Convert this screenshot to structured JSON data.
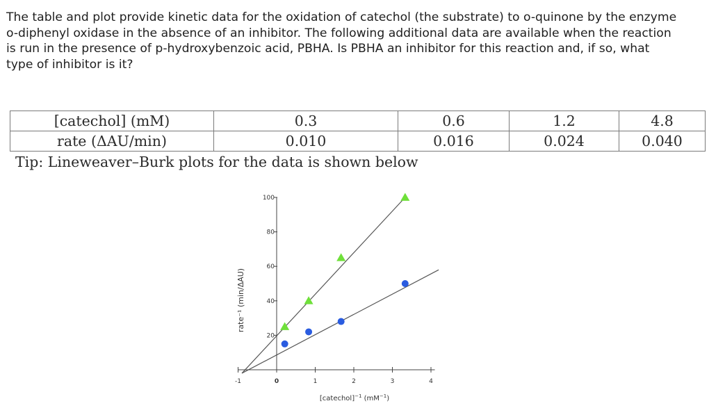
{
  "question": {
    "lines": [
      "The table and plot provide kinetic data for the oxidation of catechol (the substrate) to o-quinone by the enzyme",
      "o-diphenyl oxidase in the absence of an inhibitor. The following additional data are available when the reaction",
      "is run in the presence of p-hydroxybenzoic acid, PBHA. Is PBHA an inhibitor for this reaction and, if so, what",
      "type of inhibitor is it?"
    ]
  },
  "table": {
    "row1_label": "[catechol] (mM)",
    "row2_label": "rate (ΔAU/min)",
    "concentrations": [
      "0.3",
      "0.6",
      "1.2",
      "4.8"
    ],
    "rates": [
      "0.010",
      "0.016",
      "0.024",
      "0.040"
    ]
  },
  "tip": "Tip:  Lineweaver–Burk plots for the data is shown below",
  "chart_data": {
    "type": "scatter",
    "xlabel_main": "[catechol]",
    "xlabel_exp": "−1",
    "xlabel_unit": " (mM",
    "xlabel_unit_exp": "−1",
    "xlabel_close": ")",
    "ylabel": "rate⁻¹ (min/ΔAU)",
    "x_ticks": [
      "-1",
      "0",
      "1",
      "2",
      "3",
      "4"
    ],
    "y_ticks": [
      "100",
      "80",
      "60",
      "40",
      "20"
    ],
    "xlim": [
      -1,
      4
    ],
    "ylim": [
      0,
      100
    ],
    "series": [
      {
        "marker": "triangle",
        "color": "#6fe03a",
        "x": [
          0.21,
          0.83,
          1.67,
          3.33
        ],
        "y": [
          25,
          40,
          65,
          100
        ],
        "line_x": [
          -0.9,
          3.33
        ],
        "line_y": [
          -2,
          100
        ]
      },
      {
        "marker": "circle",
        "color": "#2a5ce0",
        "x": [
          0.21,
          0.83,
          1.67,
          3.33
        ],
        "y": [
          15,
          22,
          28,
          50
        ],
        "line_x": [
          -0.9,
          4.2
        ],
        "line_y": [
          -2,
          58
        ]
      }
    ]
  }
}
